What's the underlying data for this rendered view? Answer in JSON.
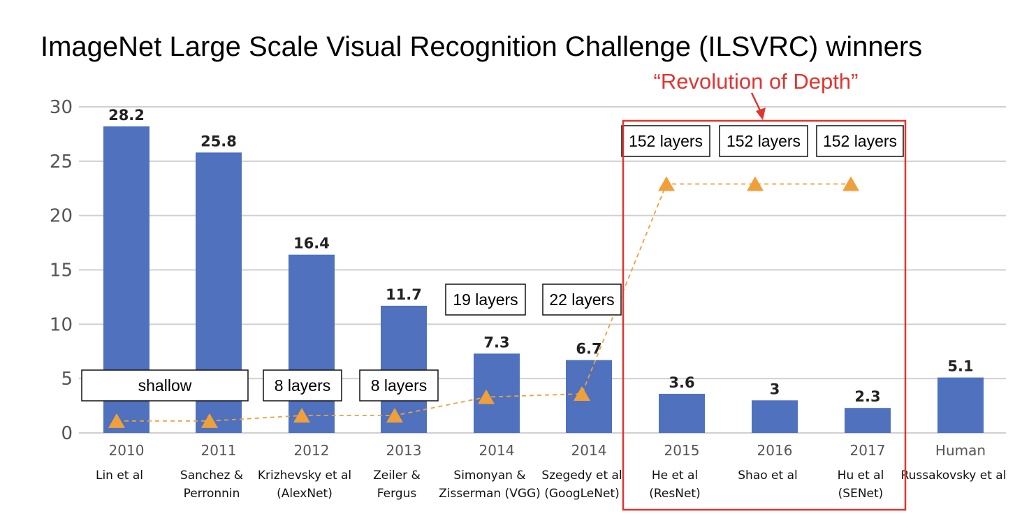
{
  "chart_data": {
    "type": "bar",
    "title": "ImageNet Large Scale Visual Recognition Challenge (ILSVRC) winners",
    "ylim": [
      0,
      30
    ],
    "yticks": [
      0,
      5,
      10,
      15,
      20,
      25,
      30
    ],
    "grid": true,
    "categories": [
      "2010",
      "2011",
      "2012",
      "2013",
      "2014",
      "2014",
      "2015",
      "2016",
      "2017",
      "Human"
    ],
    "subtitles": [
      [
        "Lin et al"
      ],
      [
        "Sanchez &",
        "Perronnin"
      ],
      [
        "Krizhevsky et al",
        "(AlexNet)"
      ],
      [
        "Zeiler &",
        "Fergus"
      ],
      [
        "Simonyan &",
        "Zisserman (VGG)"
      ],
      [
        "Szegedy et al",
        "(GoogLeNet)"
      ],
      [
        "He et al",
        "(ResNet)"
      ],
      [
        "Shao et al"
      ],
      [
        "Hu et al",
        "(SENet)"
      ],
      [
        "Russakovsky et al"
      ]
    ],
    "values": [
      28.2,
      25.8,
      16.4,
      11.7,
      7.3,
      6.7,
      3.6,
      3,
      2.3,
      5.1
    ],
    "value_labels": [
      "28.2",
      "25.8",
      "16.4",
      "11.7",
      "7.3",
      "6.7",
      "3.6",
      "3",
      "2.3",
      "5.1"
    ],
    "depth_markers": [
      1.1,
      1.1,
      1.6,
      1.6,
      3.3,
      3.6,
      22.9,
      22.9,
      22.9
    ],
    "layer_boxes": [
      "shallow",
      "8 layers",
      "8 layers",
      "19 layers",
      "22 layers",
      "152 layers",
      "152 layers",
      "152 layers"
    ],
    "annotation": "“Revolution of Depth”",
    "colors": {
      "bar": "#4f71be",
      "marker": "#f0a03a",
      "highlight": "#e03530",
      "grid": "#d0d0d0",
      "axis_text": "#555555"
    }
  }
}
